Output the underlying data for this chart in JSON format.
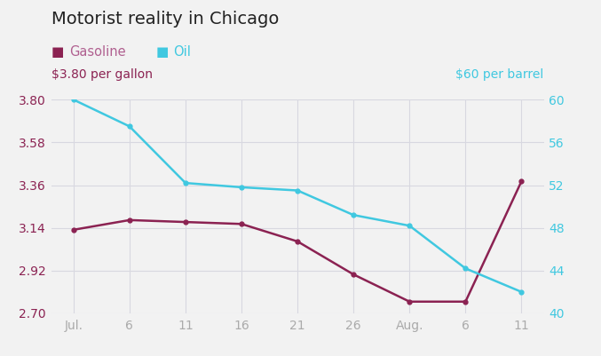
{
  "title": "Motorist reality in Chicago",
  "background_color": "#f2f2f2",
  "plot_bg_color": "#f2f2f2",
  "gasoline_color": "#8B2252",
  "oil_color": "#40C8E0",
  "gasoline_label": "Gasoline",
  "oil_label": "Oil",
  "left_axis_label": "$3.80 per gallon",
  "right_axis_label": "$60 per barrel",
  "x_tick_labels": [
    "Jul.",
    "6",
    "11",
    "16",
    "21",
    "26",
    "Aug.",
    "6",
    "11"
  ],
  "gasoline_y": [
    3.13,
    3.18,
    3.17,
    3.16,
    3.07,
    2.9,
    2.76,
    2.76,
    3.38
  ],
  "oil_y": [
    60.0,
    57.5,
    52.2,
    51.8,
    51.5,
    49.2,
    48.2,
    44.2,
    42.0
  ],
  "left_ylim": [
    2.7,
    3.8
  ],
  "right_ylim": [
    40,
    60
  ],
  "left_yticks": [
    2.7,
    2.92,
    3.14,
    3.36,
    3.58,
    3.8
  ],
  "right_yticks": [
    40,
    44,
    48,
    52,
    56,
    60
  ],
  "grid_color": "#d8d8e0"
}
